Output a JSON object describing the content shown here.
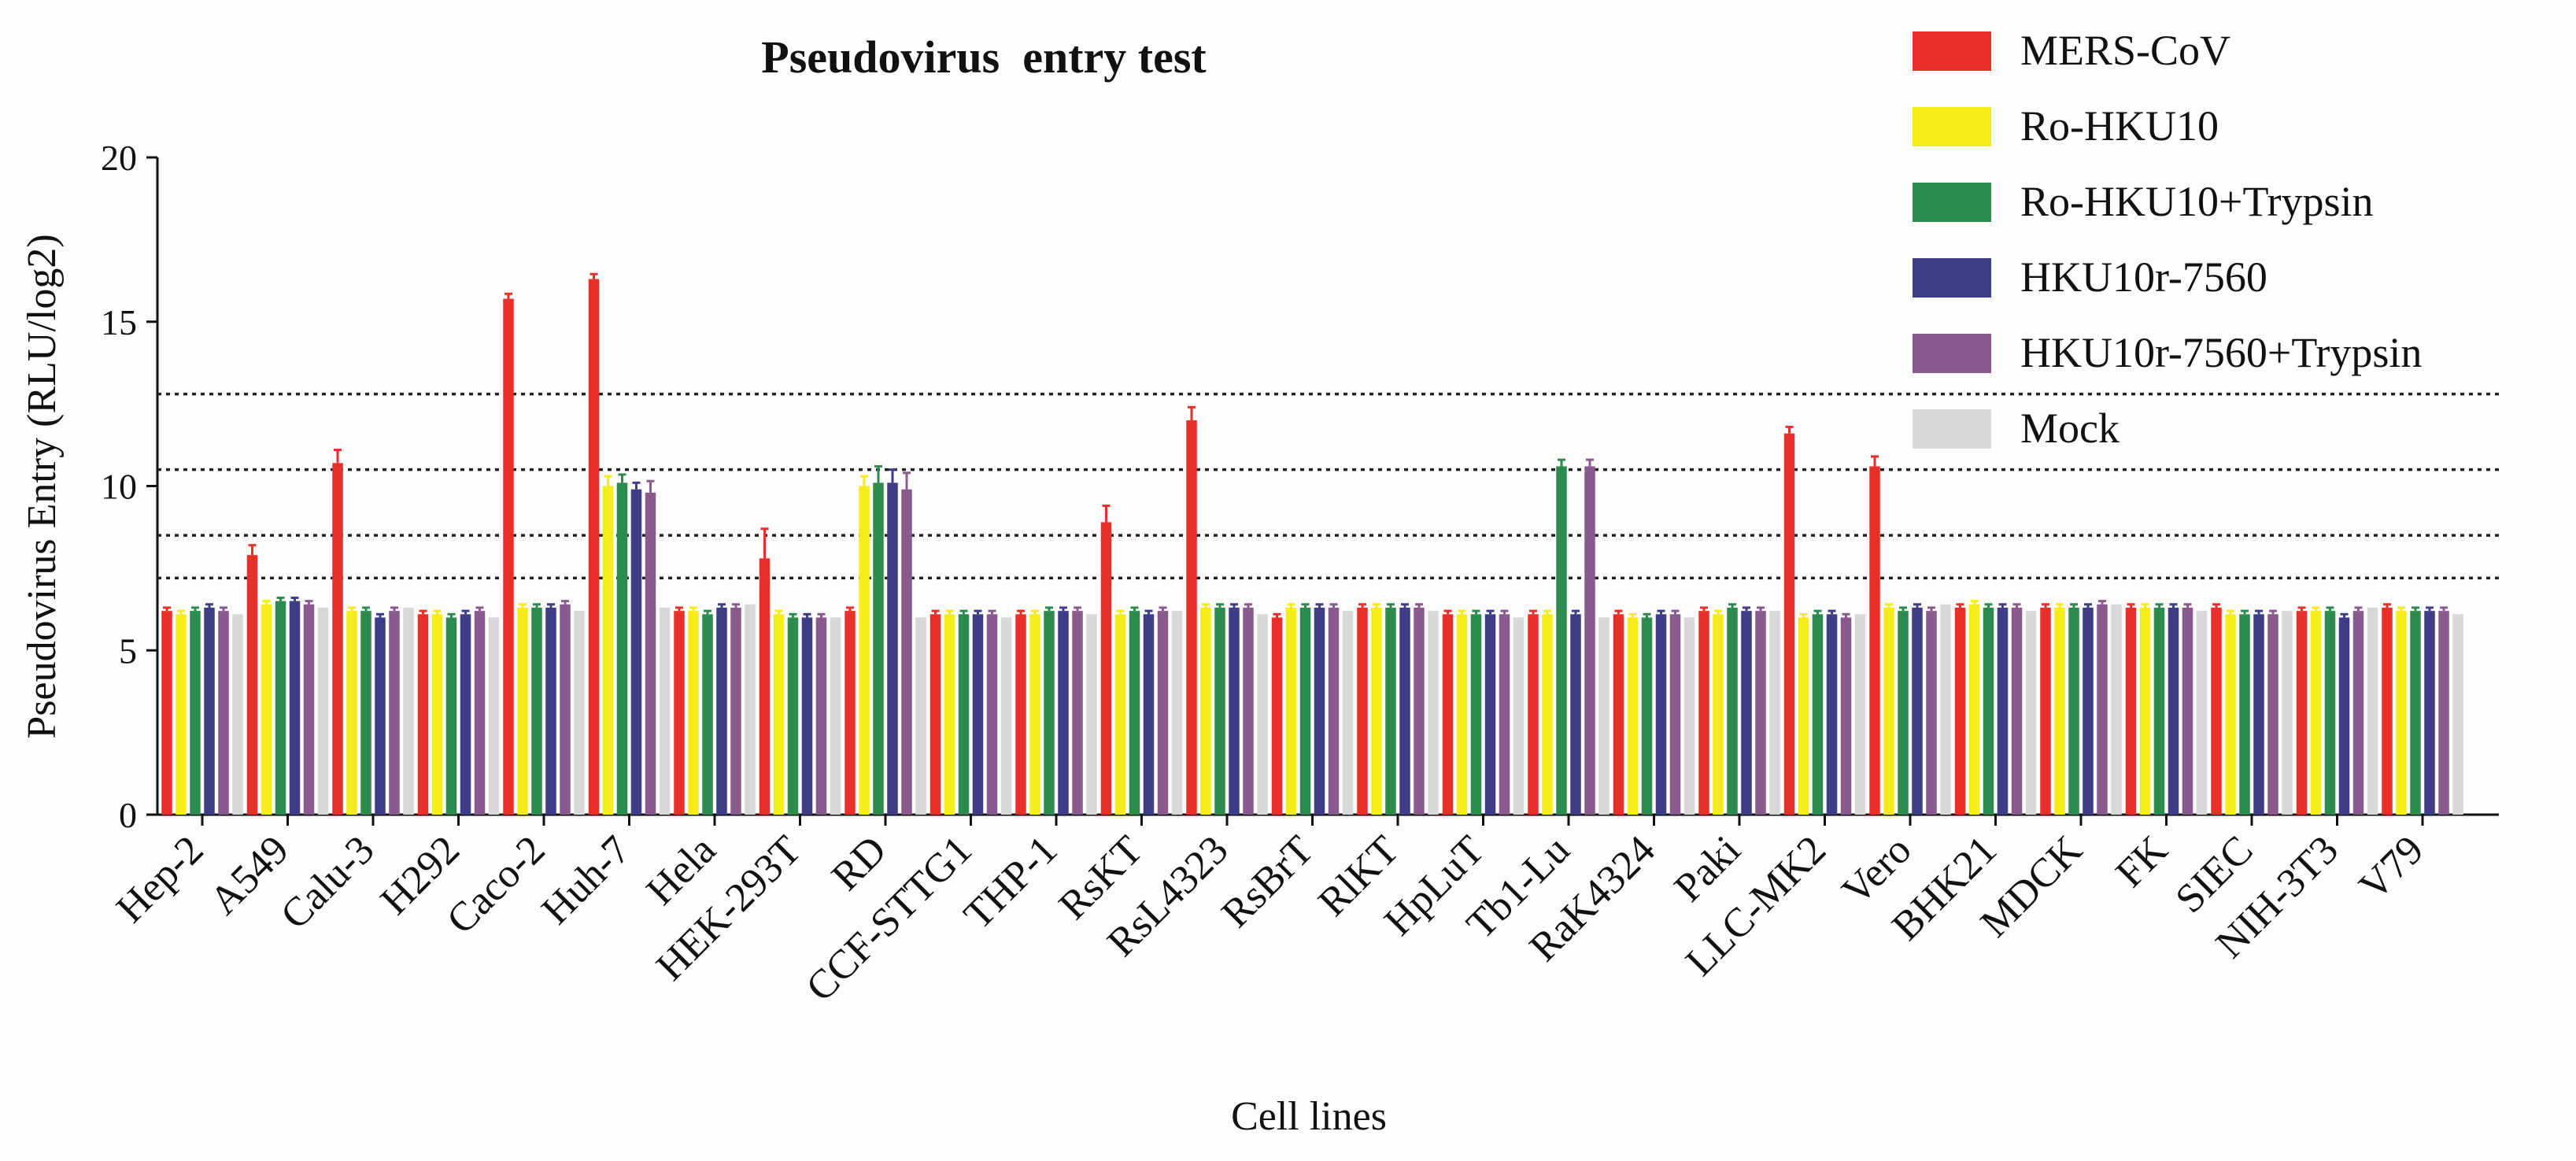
{
  "chart_data": {
    "type": "bar",
    "title": "Pseudovirus  entry test",
    "xlabel": "Cell lines",
    "ylabel": "Pseudovirus Entry (RLU/log2)",
    "ylim": [
      0,
      20
    ],
    "yticks": [
      0,
      5,
      10,
      15,
      20
    ],
    "grid": false,
    "legend_position": "top-right",
    "reference_lines": [
      7.2,
      8.5,
      10.5,
      12.8
    ],
    "categories": [
      "Hep-2",
      "A549",
      "Calu-3",
      "H292",
      "Caco-2",
      "Huh-7",
      "Hela",
      "HEK-293T",
      "RD",
      "CCF-STTG1",
      "THP-1",
      "RsKT",
      "RsL4323",
      "RsBrT",
      "RlKT",
      "HpLuT",
      "Tb1-Lu",
      "RaK4324",
      "Paki",
      "LLC-MK2",
      "Vero",
      "BHK21",
      "MDCK",
      "FK",
      "SIEC",
      "NIH-3T3",
      "V79"
    ],
    "series": [
      {
        "name": "MERS-CoV",
        "color": "#e8302a",
        "values": [
          6.2,
          7.9,
          10.7,
          6.1,
          15.7,
          16.3,
          6.2,
          7.8,
          6.2,
          6.1,
          6.1,
          8.9,
          12.0,
          6.0,
          6.3,
          6.1,
          6.1,
          6.1,
          6.2,
          11.6,
          10.6,
          6.3,
          6.3,
          6.3,
          6.3,
          6.2,
          6.3
        ],
        "errors": [
          0.1,
          0.3,
          0.4,
          0.1,
          0.15,
          0.15,
          0.1,
          0.9,
          0.1,
          0.1,
          0.1,
          0.5,
          0.4,
          0.1,
          0.1,
          0.1,
          0.1,
          0.1,
          0.1,
          0.2,
          0.3,
          0.1,
          0.1,
          0.1,
          0.1,
          0.1,
          0.1
        ]
      },
      {
        "name": "Ro-HKU10",
        "color": "#f7ec1b",
        "values": [
          6.1,
          6.4,
          6.2,
          6.1,
          6.3,
          10.0,
          6.2,
          6.1,
          10.0,
          6.1,
          6.1,
          6.1,
          6.3,
          6.3,
          6.3,
          6.1,
          6.1,
          6.0,
          6.1,
          6.0,
          6.3,
          6.4,
          6.3,
          6.3,
          6.1,
          6.2,
          6.2
        ],
        "errors": [
          0.1,
          0.1,
          0.1,
          0.1,
          0.1,
          0.3,
          0.1,
          0.1,
          0.3,
          0.1,
          0.1,
          0.1,
          0.1,
          0.1,
          0.1,
          0.1,
          0.1,
          0.1,
          0.1,
          0.1,
          0.1,
          0.1,
          0.1,
          0.1,
          0.1,
          0.1,
          0.1
        ]
      },
      {
        "name": "Ro-HKU10+Trypsin",
        "color": "#2e8b4e",
        "values": [
          6.2,
          6.5,
          6.2,
          6.0,
          6.3,
          10.1,
          6.1,
          6.0,
          10.1,
          6.1,
          6.2,
          6.2,
          6.3,
          6.3,
          6.3,
          6.1,
          10.6,
          6.0,
          6.3,
          6.1,
          6.2,
          6.3,
          6.3,
          6.3,
          6.1,
          6.2,
          6.2
        ],
        "errors": [
          0.1,
          0.1,
          0.1,
          0.1,
          0.1,
          0.25,
          0.1,
          0.1,
          0.5,
          0.1,
          0.1,
          0.1,
          0.1,
          0.1,
          0.1,
          0.1,
          0.2,
          0.1,
          0.1,
          0.1,
          0.1,
          0.1,
          0.1,
          0.1,
          0.1,
          0.1,
          0.1
        ]
      },
      {
        "name": "HKU10r-7560",
        "color": "#3f3d85",
        "values": [
          6.3,
          6.5,
          6.0,
          6.1,
          6.3,
          9.9,
          6.3,
          6.0,
          10.1,
          6.1,
          6.2,
          6.1,
          6.3,
          6.3,
          6.3,
          6.1,
          6.1,
          6.1,
          6.2,
          6.1,
          6.3,
          6.3,
          6.3,
          6.3,
          6.1,
          6.0,
          6.2
        ],
        "errors": [
          0.1,
          0.1,
          0.1,
          0.1,
          0.1,
          0.2,
          0.1,
          0.1,
          0.4,
          0.1,
          0.1,
          0.1,
          0.1,
          0.1,
          0.1,
          0.1,
          0.1,
          0.1,
          0.1,
          0.1,
          0.1,
          0.1,
          0.1,
          0.1,
          0.1,
          0.1,
          0.1
        ]
      },
      {
        "name": "HKU10r-7560+Trypsin",
        "color": "#8a5a8f",
        "values": [
          6.2,
          6.4,
          6.2,
          6.2,
          6.4,
          9.8,
          6.3,
          6.0,
          9.9,
          6.1,
          6.2,
          6.2,
          6.3,
          6.3,
          6.3,
          6.1,
          10.6,
          6.1,
          6.2,
          6.0,
          6.2,
          6.3,
          6.4,
          6.3,
          6.1,
          6.2,
          6.2
        ],
        "errors": [
          0.1,
          0.1,
          0.1,
          0.1,
          0.1,
          0.35,
          0.1,
          0.1,
          0.5,
          0.1,
          0.1,
          0.1,
          0.1,
          0.1,
          0.1,
          0.1,
          0.2,
          0.1,
          0.1,
          0.1,
          0.1,
          0.1,
          0.1,
          0.1,
          0.1,
          0.1,
          0.1
        ]
      },
      {
        "name": "Mock",
        "color": "#d8d8d8",
        "values": [
          6.1,
          6.3,
          6.3,
          6.0,
          6.2,
          6.3,
          6.4,
          6.0,
          6.0,
          6.0,
          6.1,
          6.2,
          6.1,
          6.2,
          6.2,
          6.0,
          6.0,
          6.0,
          6.2,
          6.1,
          6.4,
          6.2,
          6.4,
          6.2,
          6.2,
          6.3,
          6.1
        ],
        "errors": [
          0,
          0,
          0,
          0,
          0,
          0,
          0,
          0,
          0,
          0,
          0,
          0,
          0,
          0,
          0,
          0,
          0,
          0,
          0,
          0,
          0,
          0,
          0,
          0,
          0,
          0,
          0
        ]
      }
    ]
  }
}
